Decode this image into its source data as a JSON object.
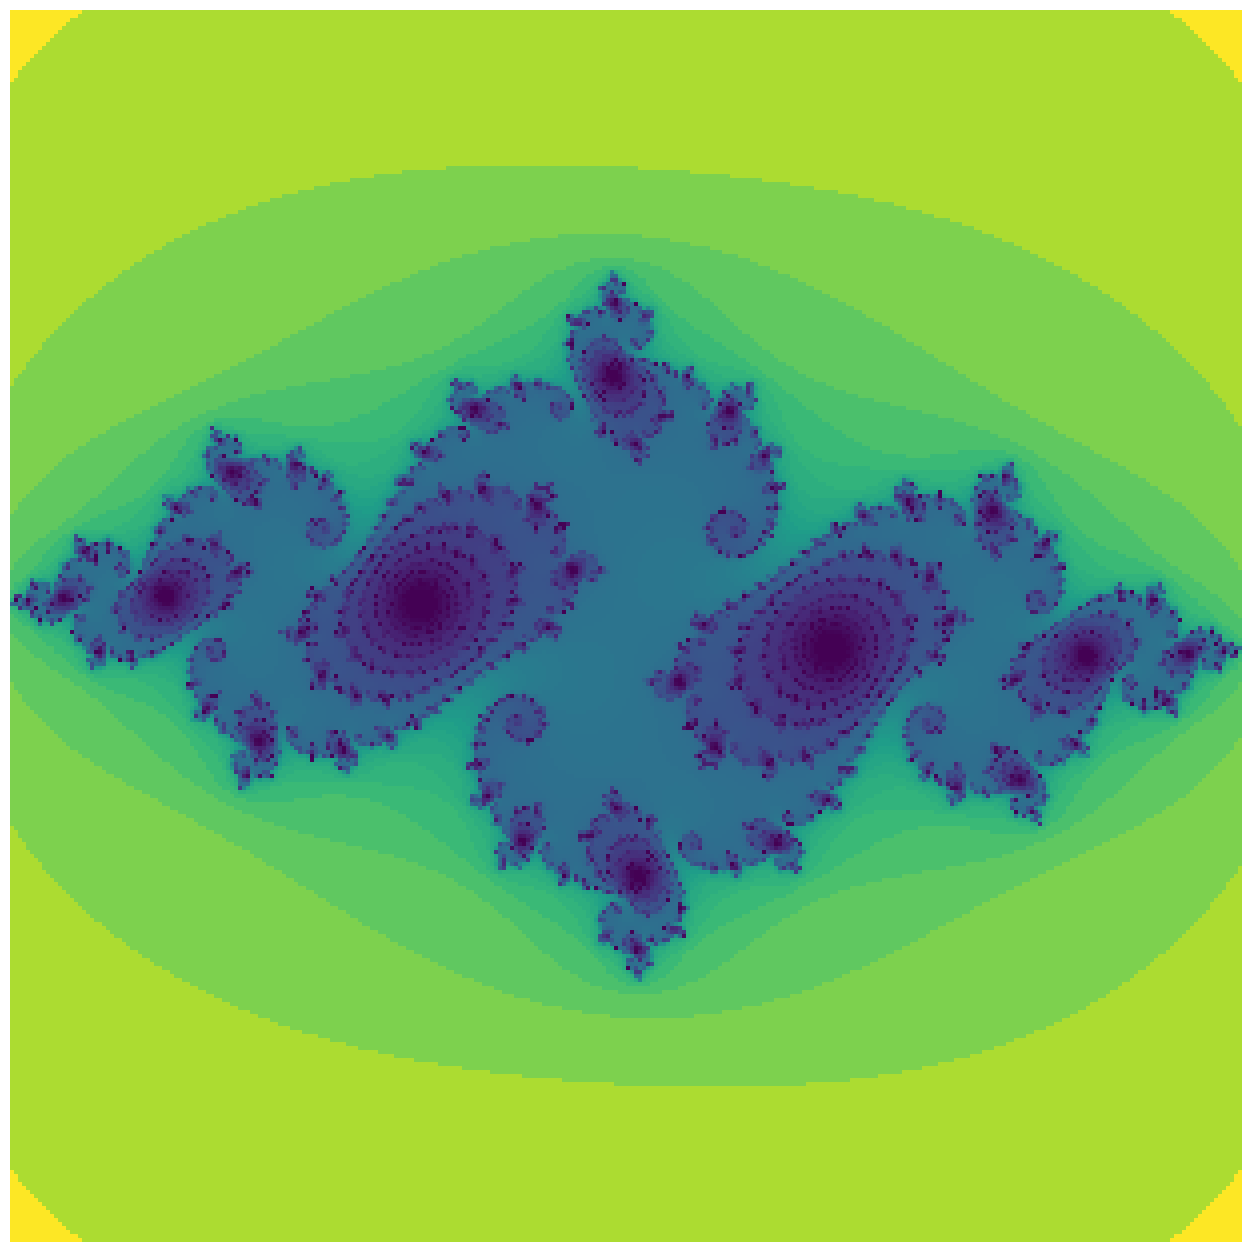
{
  "image": {
    "kind": "julia-set-escape-time-render",
    "colormap": "viridis",
    "palette": [
      "#440154",
      "#482878",
      "#3e4989",
      "#31688e",
      "#26828e",
      "#1f9e89",
      "#35b779",
      "#6ece58",
      "#b5de2b",
      "#fde725"
    ],
    "background_color": "#ffffff",
    "axes_visible": false
  },
  "fractal": {
    "c_real": -0.75,
    "c_imag": 0.11,
    "x_range": [
      -1.5,
      1.5
    ],
    "y_range": [
      -1.5,
      1.5
    ],
    "max_iterations": 256,
    "resolution": 308
  }
}
